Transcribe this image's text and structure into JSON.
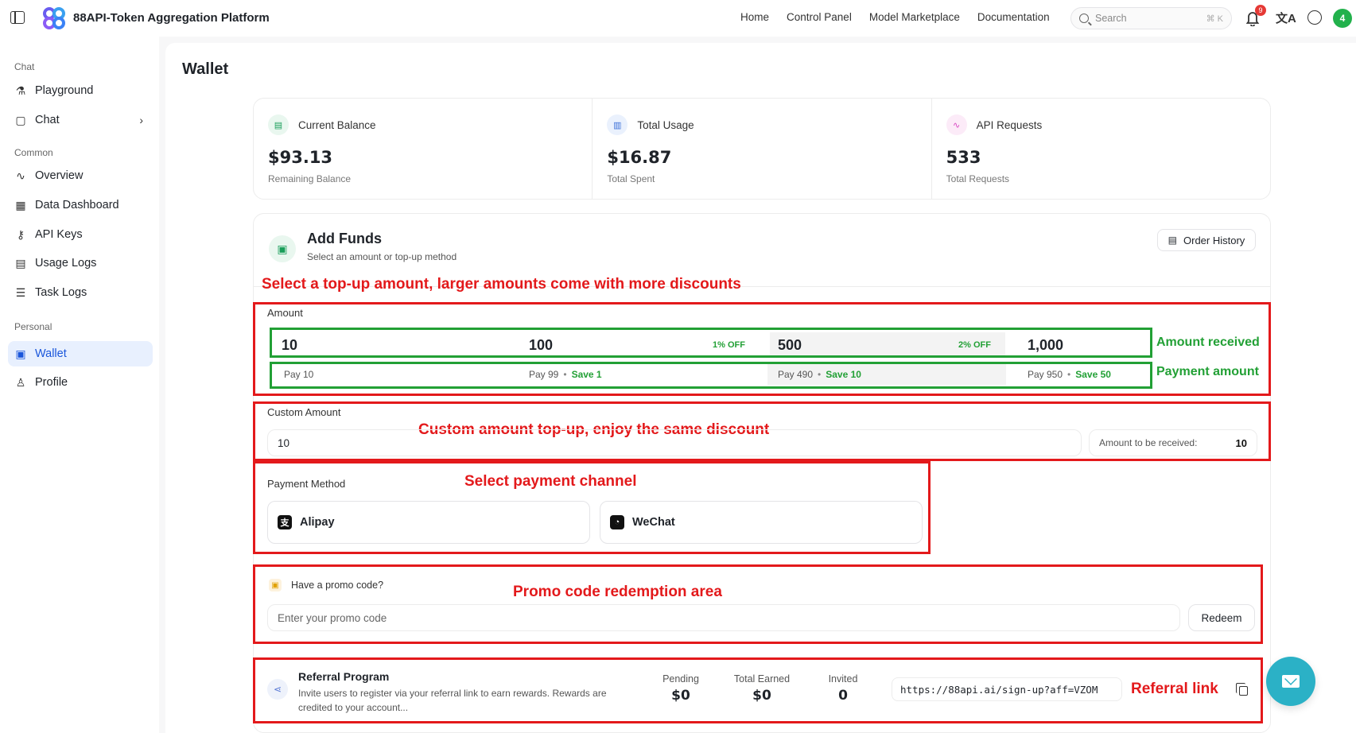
{
  "app": {
    "title": "88API-Token Aggregation Platform"
  },
  "nav": [
    "Home",
    "Control Panel",
    "Model Marketplace",
    "Documentation"
  ],
  "search": {
    "placeholder": "Search",
    "shortcut": "⌘ K"
  },
  "notifications": {
    "count": "9"
  },
  "user": {
    "avatar_initial": "4"
  },
  "sidebar": {
    "sections": [
      {
        "label": "Chat",
        "items": [
          {
            "label": "Playground",
            "icon": "flask-icon"
          },
          {
            "label": "Chat",
            "icon": "message-square-icon"
          }
        ]
      },
      {
        "label": "Common",
        "items": [
          {
            "label": "Overview",
            "icon": "activity-icon"
          },
          {
            "label": "Data Dashboard",
            "icon": "grid-icon"
          },
          {
            "label": "API Keys",
            "icon": "key-icon"
          },
          {
            "label": "Usage Logs",
            "icon": "file-text-icon"
          },
          {
            "label": "Task Logs",
            "icon": "list-checks-icon"
          }
        ]
      },
      {
        "label": "Personal",
        "items": [
          {
            "label": "Wallet",
            "icon": "wallet-icon",
            "active": true
          },
          {
            "label": "Profile",
            "icon": "user-icon"
          }
        ]
      }
    ]
  },
  "page": {
    "title": "Wallet"
  },
  "stats": [
    {
      "label": "Current Balance",
      "value": "$93.13",
      "sub": "Remaining Balance",
      "icon": "wallet-card-icon",
      "color": "#1a9e5a"
    },
    {
      "label": "Total Usage",
      "value": "$16.87",
      "sub": "Total Spent",
      "icon": "bar-chart-icon",
      "color": "#3b6fd8"
    },
    {
      "label": "API Requests",
      "value": "533",
      "sub": "Total Requests",
      "icon": "pulse-icon",
      "color": "#d846c1"
    }
  ],
  "add_funds": {
    "title": "Add Funds",
    "subtitle": "Select an amount or top-up method",
    "order_history": "Order History",
    "amount_label": "Amount",
    "amounts": [
      {
        "amount": "10",
        "off": "",
        "pay": "Pay 10",
        "save": ""
      },
      {
        "amount": "100",
        "off": "1% OFF",
        "pay": "Pay 99",
        "save": "Save 1"
      },
      {
        "amount": "500",
        "off": "2% OFF",
        "pay": "Pay 490",
        "save": "Save 10"
      },
      {
        "amount": "1,000",
        "off": "",
        "pay": "Pay 950",
        "save": "Save 50"
      }
    ],
    "custom_label": "Custom Amount",
    "custom_value": "10",
    "received_label": "Amount to be received:",
    "received_value": "10",
    "payment_label": "Payment Method",
    "payment_methods": [
      "Alipay",
      "WeChat"
    ],
    "promo_label": "Have a promo code?",
    "promo_placeholder": "Enter your promo code",
    "redeem": "Redeem"
  },
  "referral": {
    "title": "Referral Program",
    "desc": "Invite users to register via your referral link to earn rewards. Rewards are credited to your account...",
    "stats": [
      {
        "label": "Pending",
        "value": "$0"
      },
      {
        "label": "Total Earned",
        "value": "$0"
      },
      {
        "label": "Invited",
        "value": "0"
      }
    ],
    "link": "https://88api.ai/sign-up?aff=VZOM"
  },
  "annotations": {
    "topup": "Select a top-up amount, larger amounts come with more discounts",
    "received": "Amount received",
    "payment_amount": "Payment amount",
    "custom": "Custom amount top-up, enjoy the same discount",
    "channel": "Select payment channel",
    "promo": "Promo code redemption area",
    "referral": "Referral link"
  }
}
